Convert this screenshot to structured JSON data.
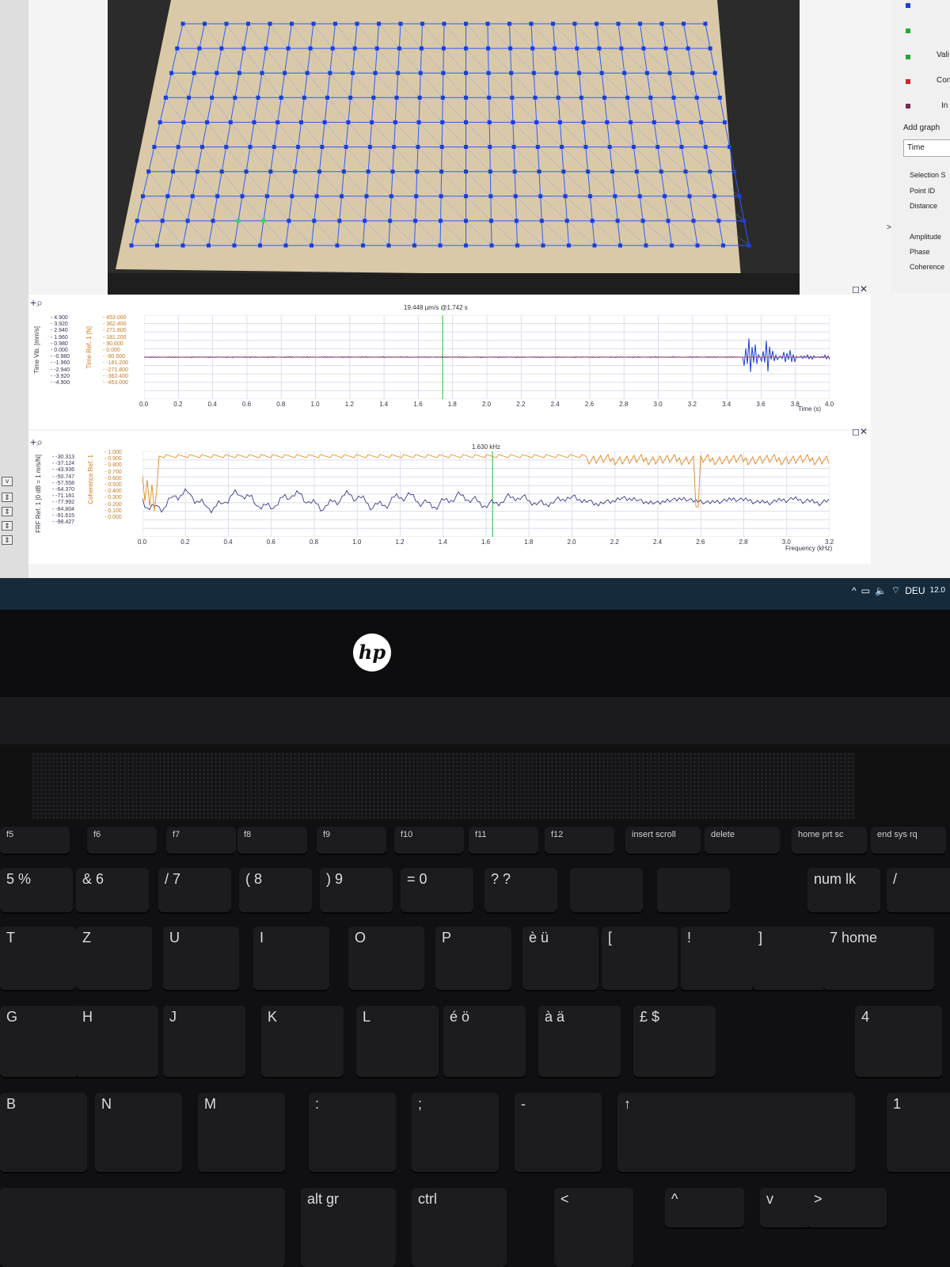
{
  "sidebar": {
    "items": [
      "Vali",
      "Con",
      "In"
    ],
    "add_graph": "Add graph",
    "time_field": "Time",
    "selection": "Selection S",
    "point_id": "Point ID",
    "distance": "Distance",
    "amplitude": "Amplitude",
    "phase": "Phase",
    "coherence": "Coherence",
    "expand": ">",
    "colors": [
      "#1a3fd8",
      "#22aa33",
      "#d22222",
      "#7a2a55"
    ]
  },
  "time_panel": {
    "caption": "19.448 µm/s @1.742 s",
    "ylabel_left": "Time Vib. [mm/s]",
    "ylabel_right": "Time Ref. 1 [N]",
    "yticks_left": [
      "4.900",
      "3.920",
      "2.940",
      "1.960",
      "0.980",
      "0.000",
      "-0.980",
      "-1.960",
      "-2.940",
      "-3.920",
      "-4.900"
    ],
    "yticks_right": [
      "453.000",
      "362.400",
      "271.800",
      "181.200",
      "90.600",
      "0.000",
      "-90.600",
      "-181.200",
      "-271.800",
      "-362.400",
      "-453.000"
    ],
    "xticks": [
      "0.0",
      "0.2",
      "0.4",
      "0.6",
      "0.8",
      "1.0",
      "1.2",
      "1.4",
      "1.6",
      "1.8",
      "2.0",
      "2.2",
      "2.4",
      "2.6",
      "2.8",
      "3.0",
      "3.2",
      "3.4",
      "3.6",
      "3.8",
      "4.0"
    ],
    "xlabel": "Time (s)"
  },
  "frf_panel": {
    "caption": "1.630 kHz",
    "ylabel_left": "FRF Ref. 1 [0 dB = 1 m/s/N]",
    "ylabel_right": "Coherence Ref. 1",
    "yticks_left": [
      "-30.313",
      "-37.124",
      "-43.936",
      "-50.747",
      "-57.558",
      "-64.370",
      "-71.181",
      "-77.992",
      "-84.804",
      "-91.615",
      "-98.427"
    ],
    "yticks_right": [
      "1.000",
      "0.900",
      "0.800",
      "0.700",
      "0.600",
      "0.500",
      "0.400",
      "0.300",
      "0.200",
      "0.100",
      "0.000"
    ],
    "xticks": [
      "0.0",
      "0.2",
      "0.4",
      "0.6",
      "0.8",
      "1.0",
      "1.2",
      "1.4",
      "1.6",
      "1.8",
      "2.0",
      "2.2",
      "2.4",
      "2.6",
      "2.8",
      "3.0",
      "3.2"
    ],
    "xlabel": "Frequency (kHz)"
  },
  "taskbar": {
    "language": "DEU",
    "clock": "12.0"
  },
  "brand": {
    "logo": "hp"
  },
  "keyboard": {
    "fkeys": [
      "f5",
      "f6",
      "f7",
      "f8",
      "f9",
      "f10",
      "f11",
      "f12",
      "insert",
      "delete",
      "home",
      "end"
    ],
    "fkey_sub": [
      "",
      "",
      "",
      "",
      "",
      "",
      "",
      "",
      "scroll",
      "",
      "prt sc",
      "sys rq"
    ],
    "row_num": [
      "%",
      "6",
      "7",
      "8",
      "9",
      "0",
      "?",
      "",
      "",
      "num lk",
      "/"
    ],
    "row_num_top": [
      "5",
      "&",
      "/",
      "(",
      ")",
      "=",
      "?",
      "",
      "",
      "",
      ""
    ],
    "row_top": [
      "T",
      "Z",
      "U",
      "I",
      "O",
      "P",
      "è ü",
      "[",
      "!",
      "]",
      "7 home"
    ],
    "row_mid": [
      "G",
      "H",
      "J",
      "K",
      "L",
      "é ö",
      "à ä",
      "£ $",
      "4"
    ],
    "row_bot": [
      "B",
      "N",
      "M",
      ":",
      ";",
      "-",
      "↑",
      "1"
    ],
    "row_space": [
      "alt gr",
      "ctrl",
      "<",
      "^",
      "v",
      ">"
    ]
  }
}
